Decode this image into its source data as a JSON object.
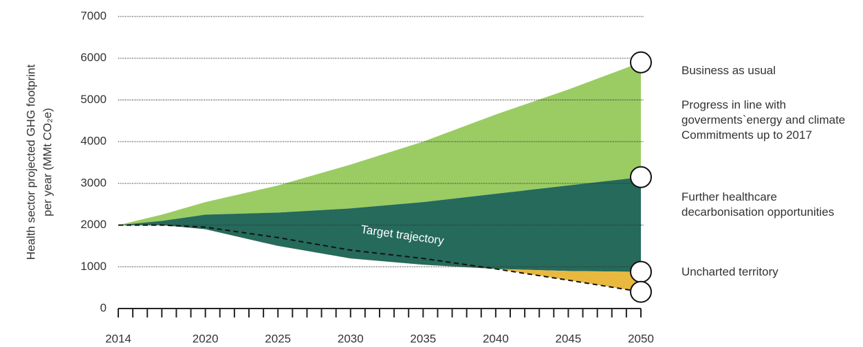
{
  "chart_data": {
    "type": "area",
    "ylabel": [
      "Health sector projected GHG footprint",
      "per year (MMt CO₂e)"
    ],
    "annotation": "Target trajectory",
    "x": [
      2014,
      2017,
      2020,
      2025,
      2030,
      2035,
      2040,
      2045,
      2050
    ],
    "series": [
      {
        "name": "Business as usual",
        "color": "#9bcc63",
        "values": [
          2000,
          2250,
          2550,
          2950,
          3450,
          4000,
          4650,
          5250,
          5900
        ]
      },
      {
        "name": "Progress in line with goverments`energy and climate Commitments up to 2017",
        "color": "#256a5b",
        "values": [
          2000,
          2100,
          2250,
          2300,
          2400,
          2550,
          2750,
          2950,
          3150
        ]
      },
      {
        "name": "Further healthcare decarbonisation opportunities",
        "color": "#e9b83f",
        "values": [
          2000,
          2000,
          1900,
          1500,
          1200,
          1050,
          950,
          900,
          880
        ]
      },
      {
        "name": "Uncharted territory",
        "color": "#111111",
        "values": [
          2000,
          2000,
          1950,
          1700,
          1400,
          1200,
          950,
          680,
          400
        ]
      }
    ],
    "xlim": [
      2014,
      2050
    ],
    "xticks": [
      2014,
      2020,
      2025,
      2030,
      2035,
      2040,
      2045,
      2050
    ],
    "ylim": [
      0,
      7000
    ],
    "yticks": [
      0,
      1000,
      2000,
      3000,
      4000,
      5000,
      6000,
      7000
    ],
    "grid": true
  }
}
